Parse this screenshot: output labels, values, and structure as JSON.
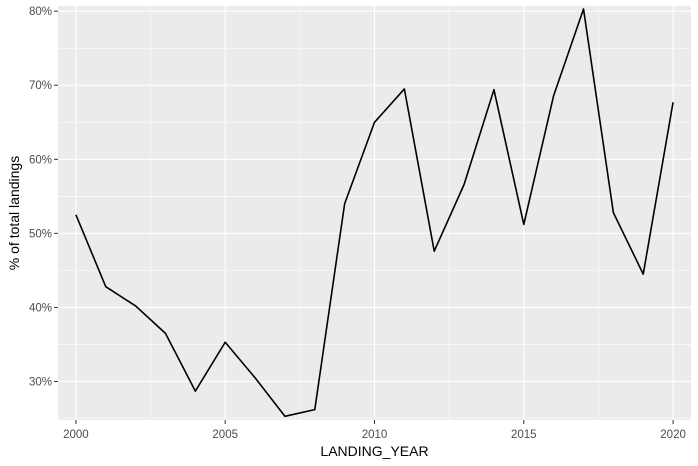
{
  "chart_data": {
    "type": "line",
    "xlabel": "LANDING_YEAR",
    "ylabel": "% of total landings",
    "xlim": [
      1999.4,
      2020.6
    ],
    "ylim": [
      0.248,
      0.807
    ],
    "x_ticks": [
      2000,
      2005,
      2010,
      2015,
      2020
    ],
    "x_tick_labels": [
      "2000",
      "2005",
      "2010",
      "2015",
      "2020"
    ],
    "y_ticks": [
      0.3,
      0.4,
      0.5,
      0.6,
      0.7,
      0.8
    ],
    "y_tick_labels": [
      "30%",
      "40%",
      "50%",
      "60%",
      "70%",
      "80%"
    ],
    "grid": true,
    "legend": "none",
    "line_color": "#000000",
    "panel_color": "#EBEBEB",
    "series": [
      {
        "x": [
          2000,
          2001,
          2002,
          2003,
          2004,
          2005,
          2006,
          2007,
          2008,
          2009,
          2010,
          2011,
          2012,
          2013,
          2014,
          2015,
          2016,
          2017,
          2018,
          2019,
          2020
        ],
        "values": [
          0.525,
          0.428,
          0.402,
          0.365,
          0.287,
          0.353,
          0.305,
          0.253,
          0.262,
          0.54,
          0.65,
          0.695,
          0.476,
          0.566,
          0.694,
          0.512,
          0.686,
          0.803,
          0.528,
          0.445,
          0.677
        ]
      }
    ]
  }
}
